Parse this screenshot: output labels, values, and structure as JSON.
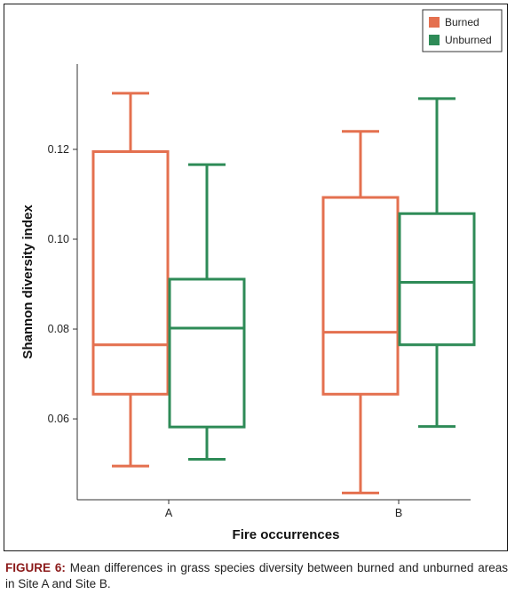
{
  "chart_data": {
    "type": "boxplot",
    "xlabel": "Fire occurrences",
    "ylabel": "Shannon diversity index",
    "categories": [
      "A",
      "B"
    ],
    "ylim": [
      0.042,
      0.139
    ],
    "yticks": [
      "0.06",
      "0.08",
      "0.10",
      "0.12"
    ],
    "grid": false,
    "legend_position": "top-right",
    "series": [
      {
        "name": "Burned",
        "color": "#e4704f",
        "boxes": [
          {
            "min": 0.0495,
            "q1": 0.0655,
            "median": 0.0765,
            "q3": 0.1195,
            "max": 0.1325
          },
          {
            "min": 0.0435,
            "q1": 0.0655,
            "median": 0.0793,
            "q3": 0.1093,
            "max": 0.124
          }
        ]
      },
      {
        "name": "Unburned",
        "color": "#2e8b57",
        "boxes": [
          {
            "min": 0.051,
            "q1": 0.0582,
            "median": 0.0802,
            "q3": 0.0911,
            "max": 0.1166
          },
          {
            "min": 0.0583,
            "q1": 0.0765,
            "median": 0.0904,
            "q3": 0.1057,
            "max": 0.1313
          }
        ]
      }
    ]
  },
  "caption": {
    "label": "FIGURE 6:",
    "text": "Mean differences in grass species diversity between burned and unburned areas in Site A and Site B."
  }
}
